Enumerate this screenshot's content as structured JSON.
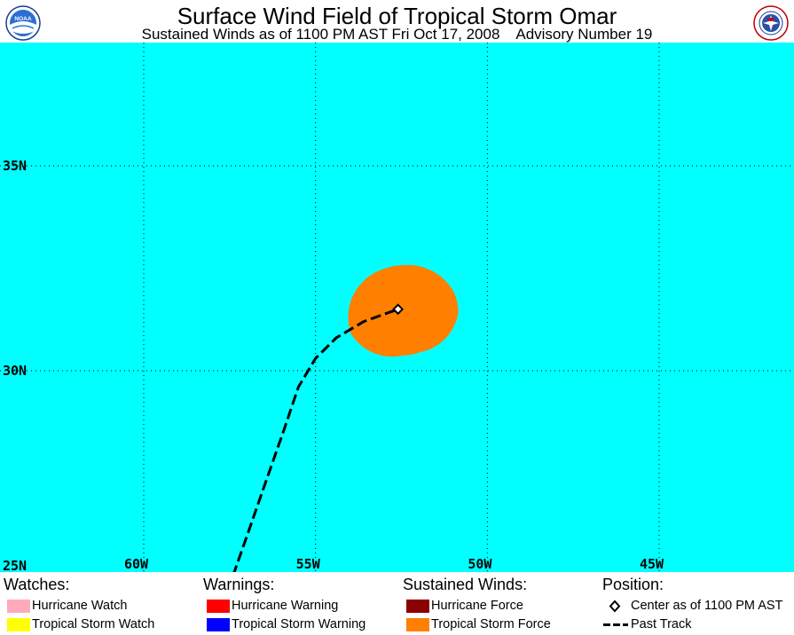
{
  "header": {
    "title": "Surface Wind Field of Tropical Storm Omar",
    "subtitle": "Sustained Winds as of 1100 PM AST Fri Oct 17, 2008    Advisory Number 19",
    "logo_left_text": "NOAA",
    "logo_right_text": "NATIONAL WEATHER SERVICE"
  },
  "map": {
    "background_color": "#00ffff",
    "lat_labels": [
      "35N",
      "30N",
      "25N"
    ],
    "lon_labels": [
      "60W",
      "55W",
      "50W",
      "45W"
    ],
    "storm_center": {
      "lat": 31.5,
      "lon": -52.6,
      "label": "Center as of 1100 PM AST"
    },
    "past_track": [
      [
        25.0,
        -57.4
      ],
      [
        26.2,
        -56.9
      ],
      [
        27.4,
        -56.4
      ],
      [
        28.6,
        -55.9
      ],
      [
        29.6,
        -55.5
      ],
      [
        30.3,
        -55.0
      ],
      [
        30.8,
        -54.4
      ],
      [
        31.2,
        -53.6
      ],
      [
        31.5,
        -52.6
      ]
    ],
    "wind_field_color": "#ff8000"
  },
  "legend": {
    "watches": {
      "heading": "Watches:",
      "items": [
        {
          "label": "Hurricane Watch",
          "color": "#ffaabb"
        },
        {
          "label": "Tropical Storm Watch",
          "color": "#ffff00"
        }
      ]
    },
    "warnings": {
      "heading": "Warnings:",
      "items": [
        {
          "label": "Hurricane Warning",
          "color": "#ff0000"
        },
        {
          "label": "Tropical Storm Warning",
          "color": "#0000ff"
        }
      ]
    },
    "winds": {
      "heading": "Sustained Winds:",
      "items": [
        {
          "label": "Hurricane Force",
          "color": "#8b0000"
        },
        {
          "label": "Tropical Storm Force",
          "color": "#ff8000"
        }
      ]
    },
    "position": {
      "heading": "Position:",
      "items": [
        {
          "label": "Center as of 1100 PM AST",
          "icon": "diamond-icon"
        },
        {
          "label": "Past Track",
          "icon": "dashed-line-icon"
        }
      ]
    }
  }
}
